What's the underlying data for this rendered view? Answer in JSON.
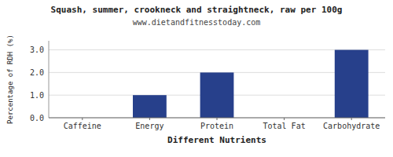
{
  "chart_data": {
    "type": "bar",
    "title": "Squash, summer, crookneck and straightneck, raw per 100g",
    "subtitle": "www.dietandfitnesstoday.com",
    "xlabel": "Different Nutrients",
    "ylabel": "Percentage of RDH (%)",
    "categories": [
      "Caffeine",
      "Energy",
      "Protein",
      "Total Fat",
      "Carbohydrate"
    ],
    "values": [
      0.0,
      1.0,
      2.0,
      0.0,
      3.0
    ],
    "color": "#27408b",
    "ylim": [
      0,
      3.4
    ],
    "yticks": [
      {
        "value": 0.0,
        "label": "0.0"
      },
      {
        "value": 1.0,
        "label": "1.0"
      },
      {
        "value": 2.0,
        "label": "2.0"
      },
      {
        "value": 3.0,
        "label": "3.0"
      }
    ],
    "grid": true
  }
}
